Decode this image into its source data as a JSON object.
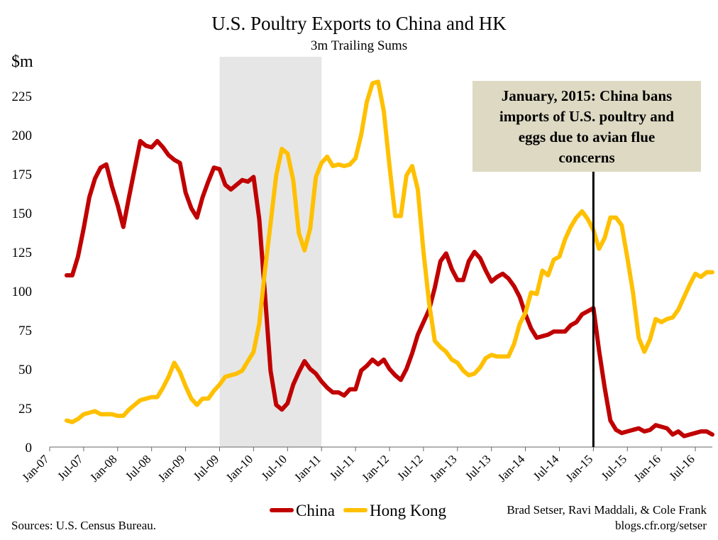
{
  "chart_data": {
    "type": "line",
    "title": "U.S. Poultry Exports to China and HK",
    "subtitle": "3m Trailing Sums",
    "ylabel": "$m",
    "xlabel": "",
    "ylim": [
      0,
      250
    ],
    "yticks": [
      0,
      25,
      50,
      75,
      100,
      125,
      150,
      175,
      200,
      225
    ],
    "xlim": [
      "2007-01",
      "2016-10"
    ],
    "xticks": [
      "Jan-07",
      "Jul-07",
      "Jan-08",
      "Jul-08",
      "Jan-09",
      "Jul-09",
      "Jan-10",
      "Jul-10",
      "Jan-11",
      "Jul-11",
      "Jan-12",
      "Jul-12",
      "Jan-13",
      "Jul-13",
      "Jan-14",
      "Jul-14",
      "Jan-15",
      "Jul-15",
      "Jan-16",
      "Jul-16"
    ],
    "shaded_region": [
      "2009-07",
      "2011-01"
    ],
    "grid": false,
    "legend_position": "bottom",
    "series": [
      {
        "name": "China",
        "color": "#c00000",
        "points": [
          [
            "2007-04",
            110
          ],
          [
            "2007-05",
            110
          ],
          [
            "2007-06",
            122
          ],
          [
            "2007-07",
            140
          ],
          [
            "2007-08",
            160
          ],
          [
            "2007-09",
            172
          ],
          [
            "2007-10",
            179
          ],
          [
            "2007-11",
            181
          ],
          [
            "2007-12",
            167
          ],
          [
            "2008-01",
            155
          ],
          [
            "2008-02",
            141
          ],
          [
            "2008-03",
            160
          ],
          [
            "2008-04",
            178
          ],
          [
            "2008-05",
            196
          ],
          [
            "2008-06",
            193
          ],
          [
            "2008-07",
            192
          ],
          [
            "2008-08",
            196
          ],
          [
            "2008-09",
            192
          ],
          [
            "2008-10",
            187
          ],
          [
            "2008-11",
            184
          ],
          [
            "2008-12",
            182
          ],
          [
            "2009-01",
            163
          ],
          [
            "2009-02",
            153
          ],
          [
            "2009-03",
            147
          ],
          [
            "2009-04",
            160
          ],
          [
            "2009-05",
            170
          ],
          [
            "2009-06",
            179
          ],
          [
            "2009-07",
            178
          ],
          [
            "2009-08",
            168
          ],
          [
            "2009-09",
            165
          ],
          [
            "2009-10",
            168
          ],
          [
            "2009-11",
            171
          ],
          [
            "2009-12",
            170
          ],
          [
            "2010-01",
            173
          ],
          [
            "2010-02",
            146
          ],
          [
            "2010-03",
            98
          ],
          [
            "2010-04",
            49
          ],
          [
            "2010-05",
            27
          ],
          [
            "2010-06",
            24
          ],
          [
            "2010-07",
            28
          ],
          [
            "2010-08",
            40
          ],
          [
            "2010-09",
            48
          ],
          [
            "2010-10",
            55
          ],
          [
            "2010-11",
            50
          ],
          [
            "2010-12",
            47
          ],
          [
            "2011-01",
            42
          ],
          [
            "2011-02",
            38
          ],
          [
            "2011-03",
            35
          ],
          [
            "2011-04",
            35
          ],
          [
            "2011-05",
            33
          ],
          [
            "2011-06",
            37
          ],
          [
            "2011-07",
            37
          ],
          [
            "2011-08",
            49
          ],
          [
            "2011-09",
            52
          ],
          [
            "2011-10",
            56
          ],
          [
            "2011-11",
            53
          ],
          [
            "2011-12",
            56
          ],
          [
            "2012-01",
            50
          ],
          [
            "2012-02",
            46
          ],
          [
            "2012-03",
            43
          ],
          [
            "2012-04",
            50
          ],
          [
            "2012-05",
            60
          ],
          [
            "2012-06",
            72
          ],
          [
            "2012-07",
            80
          ],
          [
            "2012-08",
            88
          ],
          [
            "2012-09",
            102
          ],
          [
            "2012-10",
            119
          ],
          [
            "2012-11",
            124
          ],
          [
            "2012-12",
            114
          ],
          [
            "2013-01",
            107
          ],
          [
            "2013-02",
            107
          ],
          [
            "2013-03",
            119
          ],
          [
            "2013-04",
            125
          ],
          [
            "2013-05",
            121
          ],
          [
            "2013-06",
            113
          ],
          [
            "2013-07",
            106
          ],
          [
            "2013-08",
            109
          ],
          [
            "2013-09",
            111
          ],
          [
            "2013-10",
            108
          ],
          [
            "2013-11",
            103
          ],
          [
            "2013-12",
            96
          ],
          [
            "2014-01",
            85
          ],
          [
            "2014-02",
            76
          ],
          [
            "2014-03",
            70
          ],
          [
            "2014-04",
            71
          ],
          [
            "2014-05",
            72
          ],
          [
            "2014-06",
            74
          ],
          [
            "2014-07",
            74
          ],
          [
            "2014-08",
            74
          ],
          [
            "2014-09",
            78
          ],
          [
            "2014-10",
            80
          ],
          [
            "2014-11",
            85
          ],
          [
            "2014-12",
            87
          ],
          [
            "2015-01",
            89
          ],
          [
            "2015-02",
            62
          ],
          [
            "2015-03",
            38
          ],
          [
            "2015-04",
            17
          ],
          [
            "2015-05",
            11
          ],
          [
            "2015-06",
            9
          ],
          [
            "2015-07",
            10
          ],
          [
            "2015-08",
            11
          ],
          [
            "2015-09",
            12
          ],
          [
            "2015-10",
            10
          ],
          [
            "2015-11",
            11
          ],
          [
            "2015-12",
            14
          ],
          [
            "2016-01",
            13
          ],
          [
            "2016-02",
            12
          ],
          [
            "2016-03",
            8
          ],
          [
            "2016-04",
            10
          ],
          [
            "2016-05",
            7
          ],
          [
            "2016-06",
            8
          ],
          [
            "2016-07",
            9
          ],
          [
            "2016-08",
            10
          ],
          [
            "2016-09",
            10
          ],
          [
            "2016-10",
            8
          ]
        ]
      },
      {
        "name": "Hong Kong",
        "color": "#ffc000",
        "points": [
          [
            "2007-04",
            17
          ],
          [
            "2007-05",
            16
          ],
          [
            "2007-06",
            18
          ],
          [
            "2007-07",
            21
          ],
          [
            "2007-08",
            22
          ],
          [
            "2007-09",
            23
          ],
          [
            "2007-10",
            21
          ],
          [
            "2007-11",
            21
          ],
          [
            "2007-12",
            21
          ],
          [
            "2008-01",
            20
          ],
          [
            "2008-02",
            20
          ],
          [
            "2008-03",
            24
          ],
          [
            "2008-04",
            27
          ],
          [
            "2008-05",
            30
          ],
          [
            "2008-06",
            31
          ],
          [
            "2008-07",
            32
          ],
          [
            "2008-08",
            32
          ],
          [
            "2008-09",
            38
          ],
          [
            "2008-10",
            45
          ],
          [
            "2008-11",
            54
          ],
          [
            "2008-12",
            48
          ],
          [
            "2009-01",
            39
          ],
          [
            "2009-02",
            31
          ],
          [
            "2009-03",
            27
          ],
          [
            "2009-04",
            31
          ],
          [
            "2009-05",
            31
          ],
          [
            "2009-06",
            36
          ],
          [
            "2009-07",
            40
          ],
          [
            "2009-08",
            45
          ],
          [
            "2009-09",
            46
          ],
          [
            "2009-10",
            47
          ],
          [
            "2009-11",
            49
          ],
          [
            "2009-12",
            55
          ],
          [
            "2010-01",
            61
          ],
          [
            "2010-02",
            79
          ],
          [
            "2010-03",
            113
          ],
          [
            "2010-04",
            143
          ],
          [
            "2010-05",
            174
          ],
          [
            "2010-06",
            191
          ],
          [
            "2010-07",
            188
          ],
          [
            "2010-08",
            171
          ],
          [
            "2010-09",
            137
          ],
          [
            "2010-10",
            126
          ],
          [
            "2010-11",
            140
          ],
          [
            "2010-12",
            173
          ],
          [
            "2011-01",
            182
          ],
          [
            "2011-02",
            186
          ],
          [
            "2011-03",
            180
          ],
          [
            "2011-04",
            181
          ],
          [
            "2011-05",
            180
          ],
          [
            "2011-06",
            181
          ],
          [
            "2011-07",
            185
          ],
          [
            "2011-08",
            200
          ],
          [
            "2011-09",
            221
          ],
          [
            "2011-10",
            233
          ],
          [
            "2011-11",
            234
          ],
          [
            "2011-12",
            215
          ],
          [
            "2012-01",
            180
          ],
          [
            "2012-02",
            148
          ],
          [
            "2012-03",
            148
          ],
          [
            "2012-04",
            174
          ],
          [
            "2012-05",
            180
          ],
          [
            "2012-06",
            165
          ],
          [
            "2012-07",
            125
          ],
          [
            "2012-08",
            92
          ],
          [
            "2012-09",
            68
          ],
          [
            "2012-10",
            64
          ],
          [
            "2012-11",
            61
          ],
          [
            "2012-12",
            56
          ],
          [
            "2013-01",
            54
          ],
          [
            "2013-02",
            49
          ],
          [
            "2013-03",
            46
          ],
          [
            "2013-04",
            47
          ],
          [
            "2013-05",
            51
          ],
          [
            "2013-06",
            57
          ],
          [
            "2013-07",
            59
          ],
          [
            "2013-08",
            58
          ],
          [
            "2013-09",
            58
          ],
          [
            "2013-10",
            58
          ],
          [
            "2013-11",
            66
          ],
          [
            "2013-12",
            79
          ],
          [
            "2014-01",
            86
          ],
          [
            "2014-02",
            99
          ],
          [
            "2014-03",
            98
          ],
          [
            "2014-04",
            113
          ],
          [
            "2014-05",
            110
          ],
          [
            "2014-06",
            120
          ],
          [
            "2014-07",
            122
          ],
          [
            "2014-08",
            133
          ],
          [
            "2014-09",
            141
          ],
          [
            "2014-10",
            147
          ],
          [
            "2014-11",
            151
          ],
          [
            "2014-12",
            146
          ],
          [
            "2015-01",
            139
          ],
          [
            "2015-02",
            127
          ],
          [
            "2015-03",
            134
          ],
          [
            "2015-04",
            147
          ],
          [
            "2015-05",
            147
          ],
          [
            "2015-06",
            142
          ],
          [
            "2015-07",
            121
          ],
          [
            "2015-08",
            99
          ],
          [
            "2015-09",
            70
          ],
          [
            "2015-10",
            61
          ],
          [
            "2015-11",
            69
          ],
          [
            "2015-12",
            82
          ],
          [
            "2016-01",
            80
          ],
          [
            "2016-02",
            82
          ],
          [
            "2016-03",
            83
          ],
          [
            "2016-04",
            88
          ],
          [
            "2016-05",
            96
          ],
          [
            "2016-06",
            104
          ],
          [
            "2016-07",
            111
          ],
          [
            "2016-08",
            109
          ],
          [
            "2016-09",
            112
          ],
          [
            "2016-10",
            112
          ]
        ]
      }
    ],
    "annotation": {
      "lines": [
        "January, 2015: China bans",
        "imports of U.S. poultry and",
        "eggs due to avian flue",
        "concerns"
      ],
      "at": "2015-01",
      "box_color": "#ddd9c3"
    }
  },
  "footer": {
    "sources": "Sources: U.S. Census Bureau.",
    "credit_line1": "Brad Setser, Ravi Maddali, & Cole Frank",
    "credit_line2": "blogs.cfr.org/setser"
  }
}
